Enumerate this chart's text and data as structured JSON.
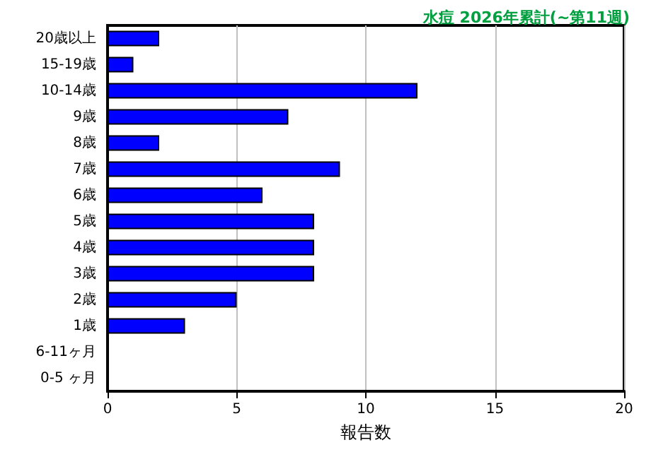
{
  "chart_data": {
    "type": "bar",
    "orientation": "horizontal",
    "title": "水痘 2026年累計(~第11週)",
    "xlabel": "報告数",
    "categories": [
      "20歳以上",
      "15-19歳",
      "10-14歳",
      "9歳",
      "8歳",
      "7歳",
      "6歳",
      "5歳",
      "4歳",
      "3歳",
      "2歳",
      "1歳",
      "6-11ヶ月",
      "0-5 ヶ月"
    ],
    "values": [
      2,
      1,
      12,
      7,
      2,
      9,
      6,
      8,
      8,
      8,
      5,
      3,
      0,
      0
    ],
    "color": "#0000ff",
    "xlim": [
      0,
      20
    ],
    "xticks": [
      0,
      5,
      10,
      15,
      20
    ],
    "grid": "x"
  }
}
